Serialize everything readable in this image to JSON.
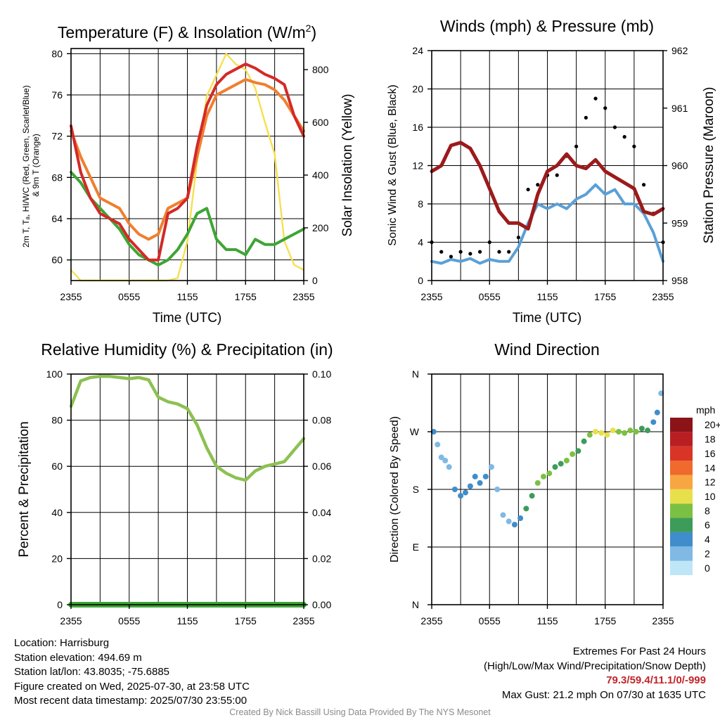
{
  "charts": {
    "temp": {
      "title": "Temperature (F) & Insolation (W/m",
      "title_sup": "2",
      "title_end": ")",
      "xlabel": "Time (UTC)",
      "ylabel_left_lines": [
        "2m T, Tₐ, HI/WC (Red, Green, Scarlet/Blue)",
        "& 9m T (Orange)"
      ],
      "ylabel_right": "Solar Insolation (Yellow)",
      "x_ticks": [
        "2355",
        "0555",
        "1155",
        "1755",
        "2355"
      ],
      "y_ticks_left": [
        "60",
        "64",
        "68",
        "72",
        "76",
        "80"
      ],
      "y_ticks_right": [
        "0",
        "200",
        "400",
        "600",
        "800"
      ]
    },
    "wind": {
      "title": "Winds (mph) & Pressure (mb)",
      "xlabel": "Time (UTC)",
      "ylabel_left": "Sonic Wind & Gust (Blue, Black)",
      "ylabel_right": "Station Pressure (Maroon)",
      "x_ticks": [
        "2355",
        "0555",
        "1155",
        "1755",
        "2355"
      ],
      "y_ticks_left": [
        "0",
        "4",
        "8",
        "12",
        "16",
        "20",
        "24"
      ],
      "y_ticks_right": [
        "958",
        "959",
        "960",
        "961",
        "962"
      ]
    },
    "rh": {
      "title": "Relative Humidity (%) & Precipitation (in)",
      "ylabel_left": "Percent & Precipitation",
      "x_ticks": [
        "2355",
        "0555",
        "1155",
        "1755",
        "2355"
      ],
      "y_ticks_left": [
        "0",
        "20",
        "40",
        "60",
        "80",
        "100"
      ],
      "y_ticks_right": [
        "0.00",
        "0.02",
        "0.04",
        "0.06",
        "0.08",
        "0.10"
      ]
    },
    "dir": {
      "title": "Wind Direction",
      "ylabel_left": "Direction (Colored By Speed)",
      "x_ticks": [
        "2355",
        "0555",
        "1155",
        "1755",
        "2355"
      ],
      "y_ticks_left": [
        "N",
        "E",
        "S",
        "W",
        "N"
      ],
      "legend_title": "mph",
      "legend_labels": [
        "0",
        "2",
        "4",
        "6",
        "8",
        "10",
        "12",
        "14",
        "16",
        "18",
        "20+"
      ],
      "legend_colors": [
        "#bfe6f7",
        "#7fb9e4",
        "#3f8ecb",
        "#3d9c5a",
        "#7cc043",
        "#e8e04a",
        "#f8a642",
        "#ef6a2c",
        "#d83527",
        "#b91e23",
        "#8c1418"
      ]
    }
  },
  "chart_data": [
    {
      "type": "line",
      "title": "Temperature (F) & Insolation (W/m2)",
      "xlabel": "Time (UTC)",
      "ylabel": "2m T, Td, HI/WC (Red, Green, Scarlet/Blue) & 9m T (Orange)",
      "y2label": "Solar Insolation (Yellow)",
      "x": [
        0,
        1,
        2,
        3,
        4,
        5,
        6,
        7,
        8,
        9,
        10,
        11,
        12,
        13,
        14,
        15,
        16,
        17,
        18,
        19,
        20,
        21,
        22,
        23,
        24
      ],
      "xlim": [
        0,
        24
      ],
      "ylim": [
        58,
        80.5
      ],
      "y2lim": [
        0,
        880
      ],
      "series": [
        {
          "color": "#d32a26",
          "axis": "left",
          "values": [
            73,
            68.5,
            66,
            64.5,
            64,
            63.5,
            62,
            61,
            60,
            60,
            64.5,
            65,
            66,
            71,
            75,
            77,
            78,
            78.5,
            79,
            78.6,
            78,
            77.6,
            77,
            74,
            72
          ]
        },
        {
          "color": "#f07f2f",
          "axis": "left",
          "values": [
            72.5,
            70,
            68,
            66,
            65.5,
            65,
            63.5,
            62.5,
            62,
            62.5,
            65,
            65.5,
            66,
            70,
            74,
            76,
            76.5,
            77,
            77.5,
            77.2,
            77,
            76.5,
            75.5,
            74,
            72.5
          ]
        },
        {
          "color": "#3fa535",
          "axis": "left",
          "values": [
            68.5,
            67.5,
            66,
            65,
            64,
            63,
            61.5,
            60.5,
            60,
            59.5,
            60,
            61,
            62.5,
            64.5,
            65,
            62,
            61,
            61,
            60.5,
            62,
            61.5,
            61.5,
            62,
            62.5,
            63
          ]
        },
        {
          "color": "#f6e04f",
          "axis": "right",
          "values": [
            40,
            0,
            0,
            0,
            0,
            0,
            0,
            0,
            0,
            0,
            0,
            10,
            150,
            450,
            700,
            780,
            860,
            820,
            800,
            730,
            600,
            480,
            150,
            60,
            40
          ]
        }
      ]
    },
    {
      "type": "line",
      "title": "Winds (mph) & Pressure (mb)",
      "xlabel": "Time (UTC)",
      "ylabel": "Sonic Wind & Gust (Blue, Black)",
      "y2label": "Station Pressure (Maroon)",
      "x": [
        0,
        1,
        2,
        3,
        4,
        5,
        6,
        7,
        8,
        9,
        10,
        11,
        12,
        13,
        14,
        15,
        16,
        17,
        18,
        19,
        20,
        21,
        22,
        23,
        24
      ],
      "xlim": [
        0,
        24
      ],
      "ylim": [
        0,
        24
      ],
      "y2lim": [
        958,
        962
      ],
      "series": [
        {
          "name": "Sonic Wind",
          "color": "#5aa0d6",
          "axis": "left",
          "values": [
            2,
            1.8,
            2.2,
            2,
            2.3,
            1.8,
            2.2,
            2,
            2,
            3.5,
            6,
            8,
            7.5,
            8,
            7.5,
            8.5,
            9,
            10,
            9,
            9.5,
            8,
            8,
            7,
            5,
            2
          ]
        },
        {
          "name": "Gust",
          "color": "#000000",
          "axis": "left",
          "values": [
            4,
            3,
            2.5,
            3,
            2.8,
            3,
            4,
            3,
            3,
            4.5,
            9.5,
            10,
            11,
            11,
            13,
            14,
            17,
            19,
            18,
            16,
            15,
            14,
            10,
            7,
            4
          ]
        },
        {
          "name": "Station Pressure",
          "color": "#9c1a1c",
          "axis": "right",
          "values": [
            959.9,
            960.0,
            960.35,
            960.4,
            960.3,
            960.0,
            959.6,
            959.2,
            959.0,
            959.0,
            958.9,
            959.5,
            959.9,
            960.0,
            960.2,
            960.0,
            959.95,
            960.1,
            959.9,
            959.8,
            959.7,
            959.6,
            959.2,
            959.15,
            959.25
          ]
        }
      ]
    },
    {
      "type": "line",
      "title": "Relative Humidity (%) & Precipitation (in)",
      "ylabel": "Percent & Precipitation",
      "x": [
        0,
        1,
        2,
        3,
        4,
        5,
        6,
        7,
        8,
        9,
        10,
        11,
        12,
        13,
        14,
        15,
        16,
        17,
        18,
        19,
        20,
        21,
        22,
        23,
        24
      ],
      "xlim": [
        0,
        24
      ],
      "ylim": [
        0,
        100
      ],
      "y2lim": [
        0,
        0.1
      ],
      "series": [
        {
          "color": "#8cc152",
          "axis": "left",
          "values": [
            86,
            97,
            98.5,
            99,
            99,
            98.5,
            98,
            98.5,
            97.5,
            90,
            88,
            87,
            85,
            78,
            68,
            60,
            57,
            55,
            54,
            58,
            60,
            61,
            62,
            67,
            72
          ]
        },
        {
          "color": "#3fa535",
          "axis": "right",
          "values": [
            0,
            0,
            0,
            0,
            0,
            0,
            0,
            0,
            0,
            0,
            0,
            0,
            0,
            0,
            0,
            0,
            0,
            0,
            0,
            0,
            0,
            0,
            0,
            0,
            0
          ]
        }
      ]
    },
    {
      "type": "scatter",
      "title": "Wind Direction",
      "ylabel": "Direction (Colored By Speed)",
      "xlim": [
        0,
        24
      ],
      "ylim": [
        0,
        360
      ],
      "x": [
        0.2,
        0.6,
        1.0,
        1.4,
        1.8,
        2.4,
        3.0,
        3.5,
        4.0,
        4.5,
        5.0,
        5.6,
        6.2,
        6.8,
        7.4,
        8.0,
        8.6,
        9.2,
        9.8,
        10.4,
        11.0,
        11.6,
        12.2,
        12.8,
        13.4,
        14.0,
        14.6,
        15.2,
        15.8,
        16.4,
        17.0,
        17.6,
        18.2,
        18.8,
        19.4,
        20.0,
        20.6,
        21.2,
        21.8,
        22.4,
        23.0,
        23.4,
        23.8
      ],
      "y": [
        270,
        250,
        230,
        225,
        215,
        180,
        170,
        175,
        185,
        200,
        190,
        200,
        215,
        180,
        140,
        130,
        125,
        135,
        150,
        170,
        190,
        200,
        205,
        215,
        220,
        225,
        235,
        240,
        255,
        265,
        270,
        268,
        265,
        272,
        270,
        268,
        272,
        270,
        275,
        272,
        285,
        300,
        330
      ],
      "speeds": [
        3,
        2,
        1,
        1,
        2,
        3,
        3,
        3,
        3,
        3,
        3,
        3,
        2,
        2,
        2,
        2,
        3,
        4,
        6,
        6,
        7,
        7,
        7,
        6,
        6,
        7,
        7,
        6,
        6,
        7,
        9,
        9,
        9,
        10,
        8,
        8,
        8,
        7,
        6,
        5,
        4,
        3,
        2
      ]
    }
  ],
  "footer": {
    "location": "Location: Harrisburg",
    "elevation": "Station elevation: 494.69 m",
    "latlon": "Station lat/lon: 43.8035; -75.6885",
    "created": "Figure created on Wed, 2025-07-30, at 23:58 UTC",
    "recent": "Most recent data timestamp: 2025/07/30 23:55:00",
    "extremes_title": "Extremes For Past 24 Hours",
    "extremes_sub": "(High/Low/Max Wind/Precipitation/Snow Depth)",
    "extremes_values": "79.3/59.4/11.1/0/-999",
    "max_gust": "Max Gust: 21.2 mph On 07/30 at 1635 UTC",
    "credit": "Created By Nick Bassill Using Data Provided By The NYS Mesonet"
  }
}
